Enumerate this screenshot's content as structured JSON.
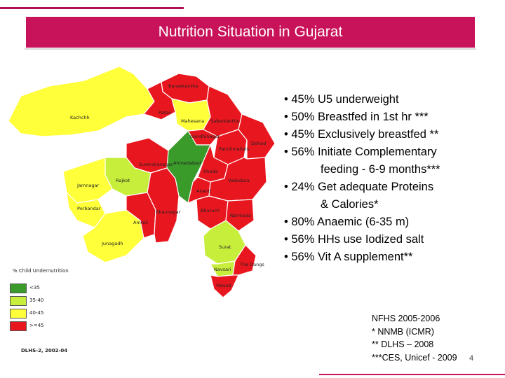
{
  "title": "Nutrition Situation in Gujarat",
  "bullets": [
    {
      "text": "• 45% U5 underweight"
    },
    {
      "text": "• 50% Breastfed in 1st hr ***"
    },
    {
      "text": "• 45% Exclusively breastfed **"
    },
    {
      "text": "• 56% Initiate    Complementary"
    },
    {
      "text": "feeding - 6-9 months***",
      "indent": true
    },
    {
      "text": "• 24% Get adequate Proteins"
    },
    {
      "text": "& Calories*",
      "indent": true
    },
    {
      "text": "• 80% Anaemic (6-35 m)"
    },
    {
      "text": "• 56% HHs use Iodized salt"
    },
    {
      "text": "• 56% Vit A supplement**"
    }
  ],
  "map": {
    "district_labels": [
      "Banaskantha",
      "Patan",
      "Kachchh",
      "Mahesana",
      "Sabarkantha",
      "Gandhinagar",
      "Ahmedabad",
      "Surendranagar",
      "Panchmahals",
      "Dohad",
      "Kheda",
      "Anand",
      "Vadodara",
      "Rajkot",
      "Jamnagar",
      "Porbandar",
      "Junagadh",
      "Amreli",
      "Bhavnagar",
      "Bharuch",
      "Narmada",
      "Surat",
      "Navsari",
      "The Dangs",
      "Valsad"
    ],
    "colors": {
      "lt_green": "#3a9a2a",
      "yellow_green": "#c8ee3c",
      "yellow": "#ffff3a",
      "red": "#e8161e"
    }
  },
  "legend": {
    "title": "% Child Undernutrition",
    "items": [
      {
        "label": "<35",
        "color": "#3a9a2a"
      },
      {
        "label": "35-40",
        "color": "#c8ee3c"
      },
      {
        "label": "40-45",
        "color": "#ffff3a"
      },
      {
        "label": ">=45",
        "color": "#e8161e"
      }
    ]
  },
  "source_left": "DLHS-2, 2002-04",
  "references": [
    "NFHS 2005-2006",
    "* NNMB (ICMR)",
    "** DLHS – 2008",
    "***CES, Unicef - 2009"
  ],
  "page_number": "4"
}
